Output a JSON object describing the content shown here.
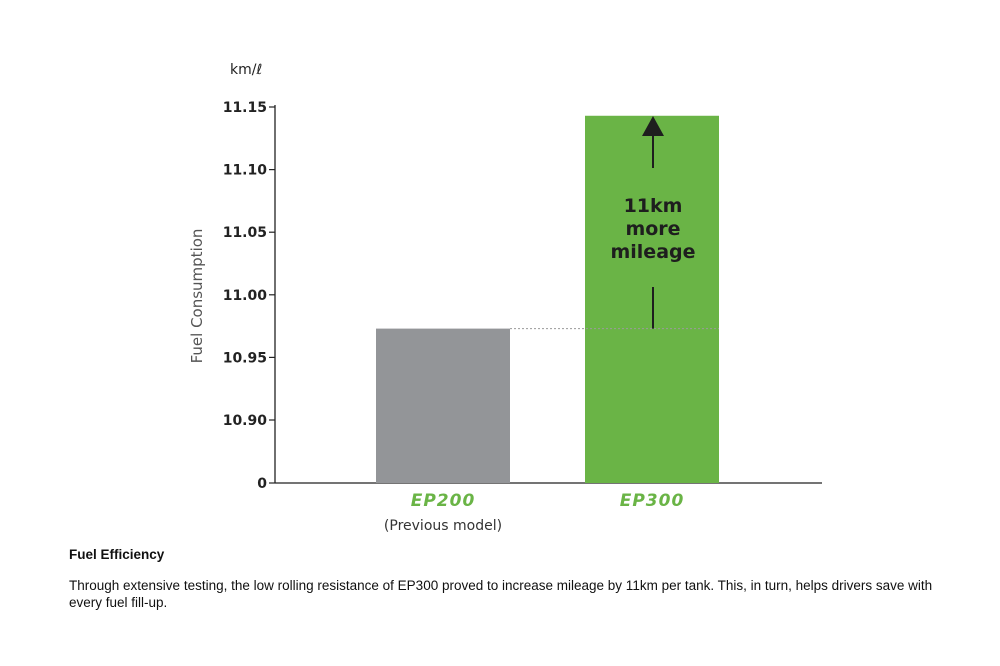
{
  "chart_data": {
    "type": "bar",
    "categories": [
      "EP200",
      "EP300"
    ],
    "category_sublabels": [
      "(Previous model)",
      ""
    ],
    "values": [
      10.973,
      11.143
    ],
    "bar_colors": [
      "#939598",
      "#6ab446"
    ],
    "unit_label": "km/ℓ",
    "ylabel": "Fuel Consumption",
    "xlabel": "",
    "y_tick_labels": [
      "11.15",
      "11.10",
      "11.05",
      "11.00",
      "10.95",
      "10.90",
      "0"
    ],
    "y_ticks": [
      11.15,
      11.1,
      11.05,
      11.0,
      10.95,
      10.9
    ],
    "ylim": [
      10.85,
      11.15
    ],
    "y_axis_break": true,
    "grid": false,
    "annotation": {
      "lines": [
        "11km",
        "more",
        "mileage"
      ],
      "arrow": "up"
    }
  },
  "caption": {
    "title": "Fuel Efficiency",
    "body": "Through extensive testing, the low rolling resistance of EP300 proved to increase mileage by 11km per tank. This, in turn, helps drivers save with every fuel fill-up."
  }
}
